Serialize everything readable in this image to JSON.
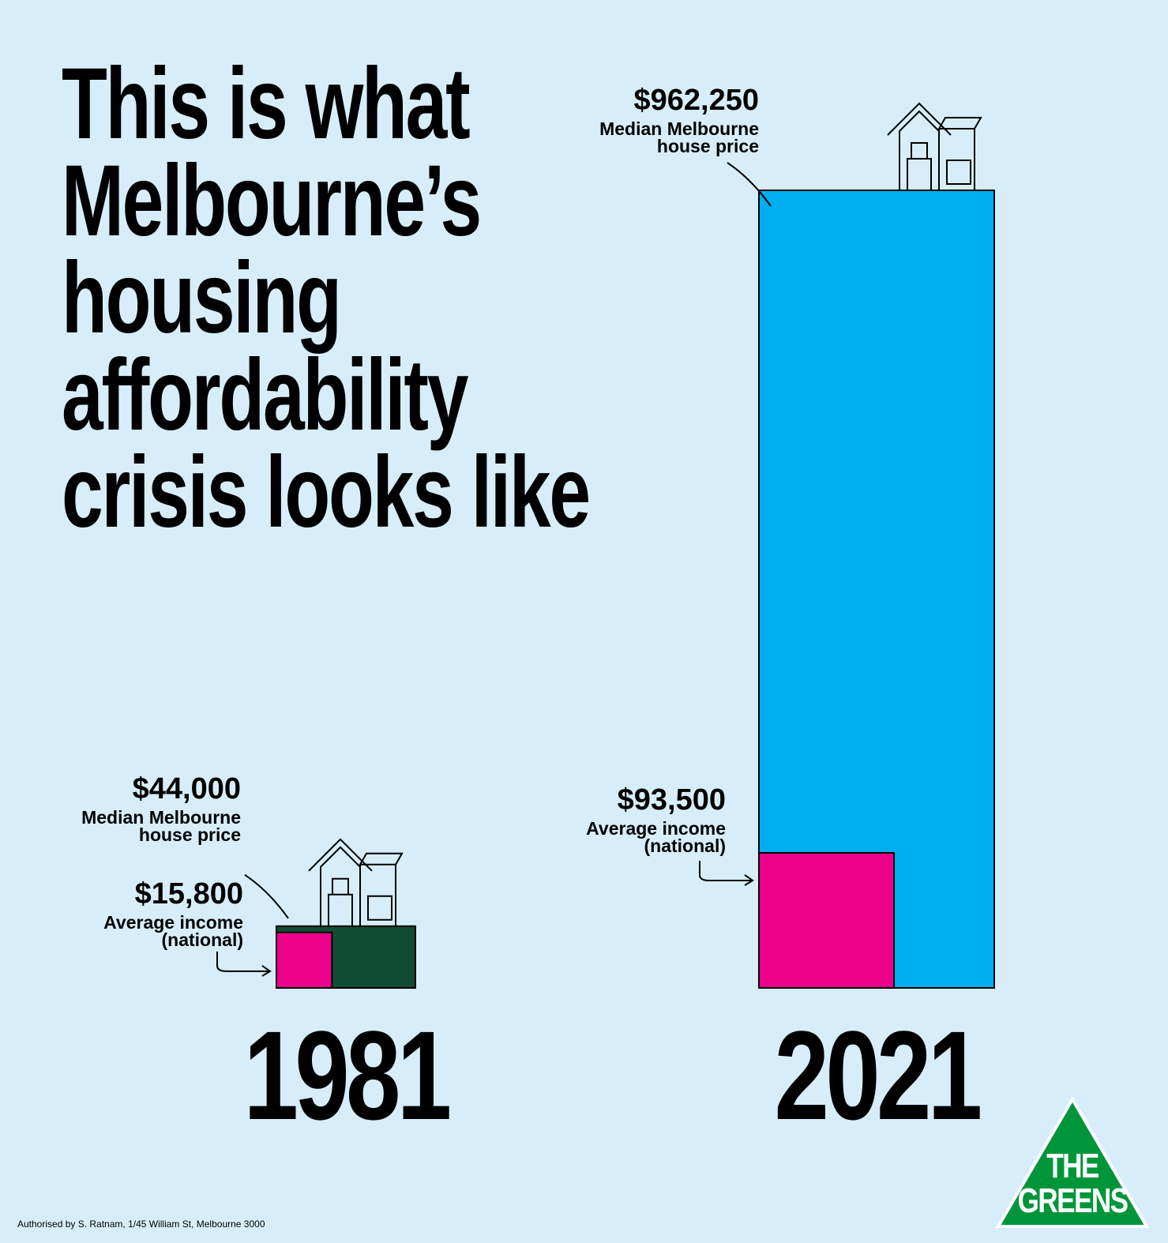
{
  "chart_data": {
    "type": "bar",
    "title": "This is what Melbourne’s housing affordability crisis looks like",
    "categories": [
      "1981",
      "2021"
    ],
    "series": [
      {
        "name": "Median Melbourne house price",
        "colors": [
          "#114b36",
          "#00aeef"
        ],
        "values": [
          44000,
          962250
        ],
        "value_labels": [
          "$44,000",
          "$962,250"
        ]
      },
      {
        "name": "Average income (national)",
        "color": "#ec008c",
        "values": [
          15800,
          93500
        ],
        "value_labels": [
          "$15,800",
          "$93,500"
        ]
      }
    ]
  },
  "footer": "Authorised by S. Ratnam, 1/45 William St, Melbourne 3000",
  "logo": {
    "line1": "THE",
    "line2": "GREENS"
  }
}
